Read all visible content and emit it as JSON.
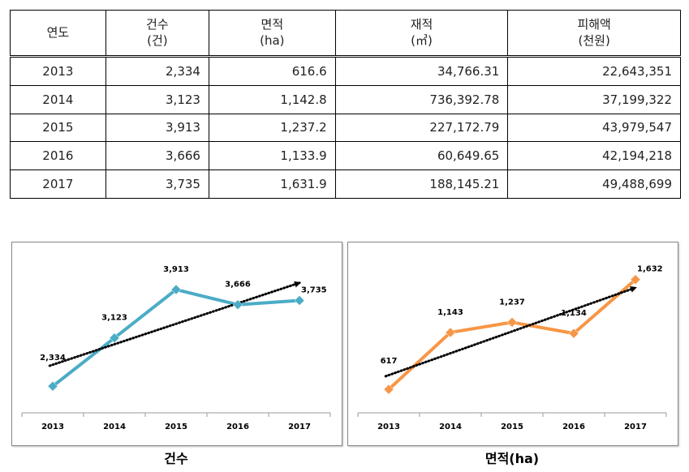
{
  "table": {
    "headers": [
      {
        "label": "연도",
        "unit": ""
      },
      {
        "label": "건수",
        "unit": "(건)"
      },
      {
        "label": "면적",
        "unit": "(ha)"
      },
      {
        "label": "재적",
        "unit": "(㎥)"
      },
      {
        "label": "피해액",
        "unit": "(천원)"
      }
    ],
    "rows": [
      [
        "2013",
        "2,334",
        "616.6",
        "34,766.31",
        "22,643,351"
      ],
      [
        "2014",
        "3,123",
        "1,142.8",
        "736,392.78",
        "37,199,322"
      ],
      [
        "2015",
        "3,913",
        "1,237.2",
        "227,172.79",
        "43,979,547"
      ],
      [
        "2016",
        "3,666",
        "1,133.9",
        "60,649.65",
        "42,194,218"
      ],
      [
        "2017",
        "3,735",
        "1,631.9",
        "188,145.21",
        "49,488,699"
      ]
    ]
  },
  "chart_data": [
    {
      "type": "line",
      "caption": "건수",
      "categories": [
        "2013",
        "2014",
        "2015",
        "2016",
        "2017"
      ],
      "values": [
        2334,
        3123,
        3913,
        3666,
        3735
      ],
      "data_labels": [
        "2,334",
        "3,123",
        "3,913",
        "3,666",
        "3,735"
      ],
      "ylim": [
        1900,
        4550
      ],
      "color": "#4BACC6",
      "trendline": {
        "style": "dotted",
        "arrow": true,
        "color": "#000000"
      }
    },
    {
      "type": "line",
      "caption": "면적(ha)",
      "categories": [
        "2013",
        "2014",
        "2015",
        "2016",
        "2017"
      ],
      "values": [
        616.6,
        1142.8,
        1237.2,
        1133.9,
        1631.9
      ],
      "data_labels": [
        "617",
        "1,143",
        "1,237",
        "1,134",
        "1,632"
      ],
      "ylim": [
        400,
        1900
      ],
      "color": "#F79646",
      "trendline": {
        "style": "dotted",
        "arrow": true,
        "color": "#000000"
      }
    }
  ]
}
